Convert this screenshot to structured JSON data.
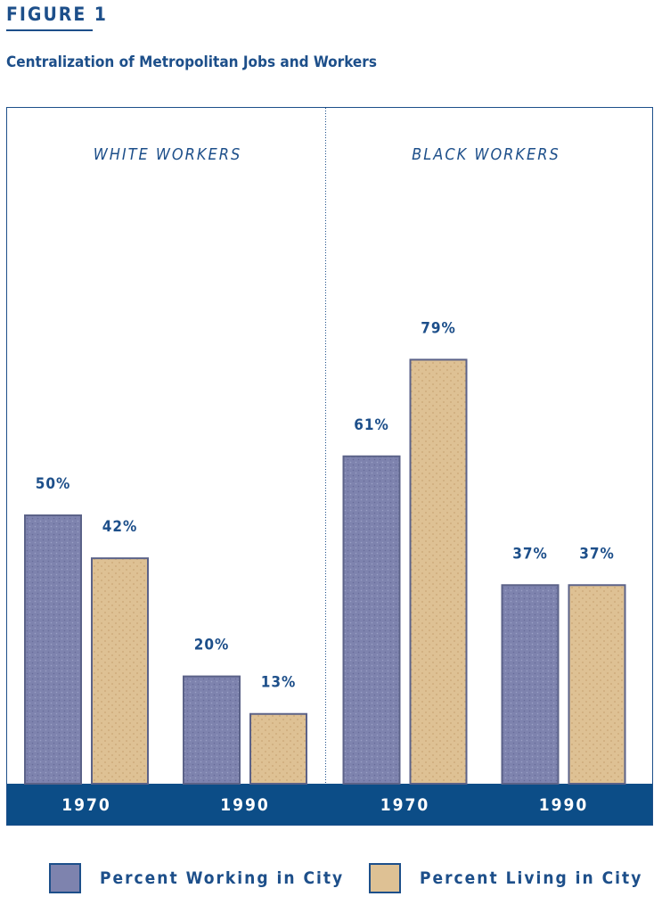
{
  "figure": {
    "label": "FIGURE 1",
    "title": "Centralization of Metropolitan Jobs and Workers"
  },
  "colors": {
    "working": "#7e83ae",
    "living": "#dec194",
    "axis_band": "#0c4d87",
    "text": "#1d4f8a"
  },
  "chart_data": {
    "type": "bar",
    "ylim": [
      0,
      100
    ],
    "grid": false,
    "legend_position": "bottom",
    "panels": [
      {
        "title": "WHITE WORKERS",
        "categories": [
          "1970",
          "1990"
        ],
        "series": [
          {
            "name": "Percent Working in City",
            "values": [
              50,
              20
            ],
            "labels": [
              "50%",
              "20%"
            ]
          },
          {
            "name": "Percent Living in City",
            "values": [
              42,
              13
            ],
            "labels": [
              "42%",
              "13%"
            ]
          }
        ]
      },
      {
        "title": "BLACK WORKERS",
        "categories": [
          "1970",
          "1990"
        ],
        "series": [
          {
            "name": "Percent Working in City",
            "values": [
              61,
              37
            ],
            "labels": [
              "61%",
              "37%"
            ]
          },
          {
            "name": "Percent Living in City",
            "values": [
              79,
              37
            ],
            "labels": [
              "79%",
              "37%"
            ]
          }
        ]
      }
    ]
  },
  "legend": [
    {
      "label": "Percent Working in City",
      "series": "working"
    },
    {
      "label": "Percent Living in City",
      "series": "living"
    }
  ]
}
